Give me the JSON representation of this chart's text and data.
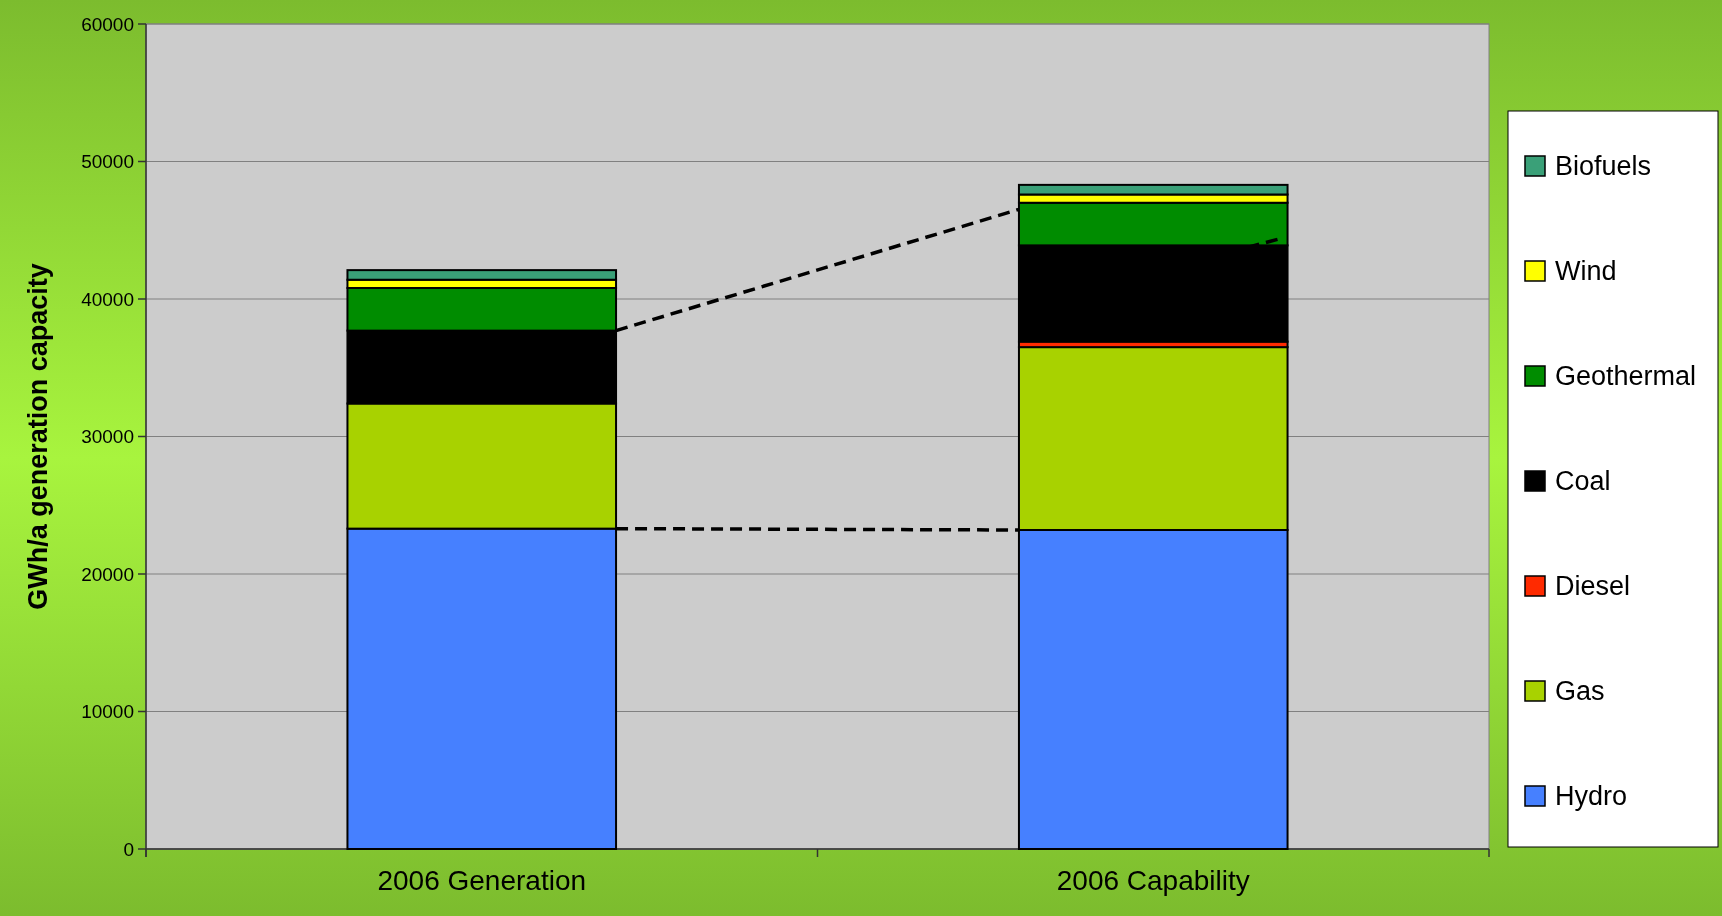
{
  "chart_data": {
    "type": "bar",
    "stacked": true,
    "ylabel": "GWh/a generation capacity",
    "categories": [
      "2006 Generation",
      "2006 Capability"
    ],
    "series": [
      {
        "name": "Hydro",
        "color": "#4680ff",
        "values": [
          23300,
          23200
        ]
      },
      {
        "name": "Gas",
        "color": "#a8d200",
        "values": [
          9100,
          13300
        ]
      },
      {
        "name": "Diesel",
        "color": "#ff2a00",
        "values": [
          0,
          400
        ]
      },
      {
        "name": "Coal",
        "color": "#000000",
        "values": [
          5300,
          7000
        ]
      },
      {
        "name": "Geothermal",
        "color": "#008c00",
        "values": [
          3100,
          3100
        ]
      },
      {
        "name": "Wind",
        "color": "#ffff00",
        "values": [
          600,
          600
        ]
      },
      {
        "name": "Biofuels",
        "color": "#3aa078",
        "values": [
          700,
          700
        ]
      }
    ],
    "ylim": [
      0,
      60000
    ],
    "yticks": [
      0,
      10000,
      20000,
      30000,
      40000,
      50000,
      60000
    ],
    "grid": "y",
    "legend": "right"
  }
}
